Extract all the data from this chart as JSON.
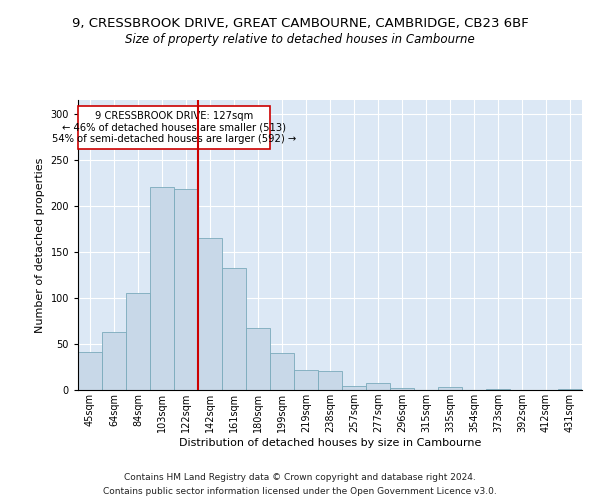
{
  "title1": "9, CRESSBROOK DRIVE, GREAT CAMBOURNE, CAMBRIDGE, CB23 6BF",
  "title2": "Size of property relative to detached houses in Cambourne",
  "xlabel": "Distribution of detached houses by size in Cambourne",
  "ylabel": "Number of detached properties",
  "categories": [
    "45sqm",
    "64sqm",
    "84sqm",
    "103sqm",
    "122sqm",
    "142sqm",
    "161sqm",
    "180sqm",
    "199sqm",
    "219sqm",
    "238sqm",
    "257sqm",
    "277sqm",
    "296sqm",
    "315sqm",
    "335sqm",
    "354sqm",
    "373sqm",
    "392sqm",
    "412sqm",
    "431sqm"
  ],
  "values": [
    41,
    63,
    105,
    221,
    218,
    165,
    133,
    67,
    40,
    22,
    21,
    4,
    8,
    2,
    0,
    3,
    0,
    1,
    0,
    0,
    1
  ],
  "bar_color": "#c8d8e8",
  "bar_edge_color": "#7aaabb",
  "vline_x": 4.5,
  "vline_color": "#cc0000",
  "annotation_text": "9 CRESSBROOK DRIVE: 127sqm\n← 46% of detached houses are smaller (513)\n54% of semi-detached houses are larger (592) →",
  "annotation_box_color": "#ffffff",
  "annotation_box_edge": "#cc0000",
  "ylim": [
    0,
    315
  ],
  "yticks": [
    0,
    50,
    100,
    150,
    200,
    250,
    300
  ],
  "footer1": "Contains HM Land Registry data © Crown copyright and database right 2024.",
  "footer2": "Contains public sector information licensed under the Open Government Licence v3.0.",
  "plot_background": "#dce8f5",
  "title1_fontsize": 9.5,
  "title2_fontsize": 8.5,
  "xlabel_fontsize": 8,
  "ylabel_fontsize": 8,
  "footer_fontsize": 6.5,
  "tick_fontsize": 7
}
